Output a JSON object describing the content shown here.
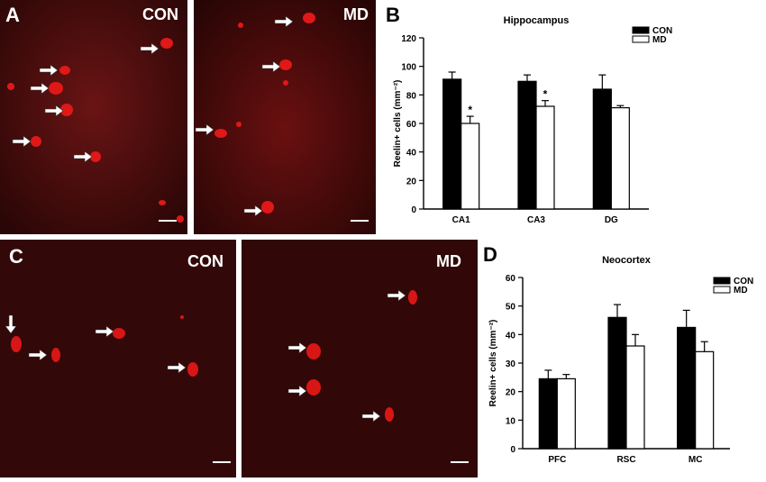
{
  "panels": {
    "A": {
      "letter": "A",
      "label": "CON"
    },
    "A2": {
      "label": "MD"
    },
    "B": {
      "letter": "B"
    },
    "C": {
      "letter": "C",
      "label": "CON"
    },
    "C2": {
      "label": "MD"
    },
    "D": {
      "letter": "D"
    }
  },
  "colors": {
    "con": "#000000",
    "md": "#ffffff",
    "micro_bg": "#3a0a0a",
    "cell": "#e01818"
  },
  "chart_data": [
    {
      "type": "bar",
      "title": "Hippocampus",
      "ylabel": "Reelin+ cells (mm⁻²)",
      "xlabel": "",
      "categories": [
        "CA1",
        "CA3",
        "DG"
      ],
      "ylim": [
        0,
        120
      ],
      "yticks": [
        0,
        20,
        40,
        60,
        80,
        100,
        120
      ],
      "legend": "top-right",
      "series": [
        {
          "name": "CON",
          "values": [
            91,
            89.5,
            84
          ],
          "errors": [
            5,
            4.5,
            10
          ]
        },
        {
          "name": "MD",
          "values": [
            60,
            72,
            71
          ],
          "errors": [
            5,
            4,
            1.5
          ]
        }
      ],
      "significance": [
        "*",
        "*",
        ""
      ]
    },
    {
      "type": "bar",
      "title": "Neocortex",
      "ylabel": "Reelin+ cells (mm⁻²)",
      "xlabel": "",
      "categories": [
        "PFC",
        "RSC",
        "MC"
      ],
      "ylim": [
        0,
        60
      ],
      "yticks": [
        0,
        10,
        20,
        30,
        40,
        50,
        60
      ],
      "legend": "top-right",
      "series": [
        {
          "name": "CON",
          "values": [
            24.5,
            46,
            42.5
          ],
          "errors": [
            3,
            4.5,
            6
          ]
        },
        {
          "name": "MD",
          "values": [
            24.5,
            36,
            34
          ],
          "errors": [
            1.5,
            4,
            3.5
          ]
        }
      ],
      "significance": [
        "",
        "",
        ""
      ]
    }
  ]
}
